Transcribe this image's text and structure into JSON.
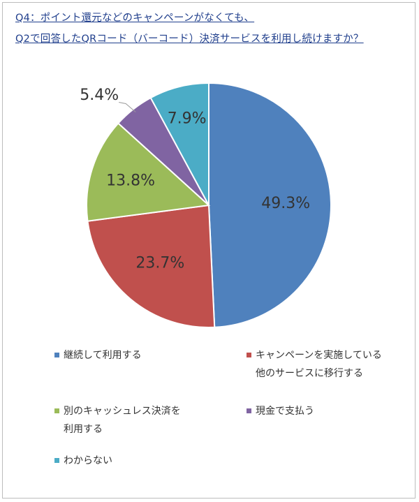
{
  "title": {
    "line1": "Q4：ポイント還元などのキャンペーンがなくても、",
    "line2": "Q2で回答したQRコード（バーコード）決済サービスを利用し続けますか？"
  },
  "chart_data": {
    "type": "pie",
    "start_angle_deg": 0,
    "direction": "clockwise",
    "slices": [
      {
        "label": "継続して利用する",
        "legend": "継続して利用する",
        "value": 49.3,
        "display": "49.3%",
        "color": "#4f81bd"
      },
      {
        "label": "キャンペーンを実施している他のサービスに移行する",
        "legend": "キャンペーンを実施している\n他のサービスに移行する",
        "value": 23.7,
        "display": "23.7%",
        "color": "#c0504d"
      },
      {
        "label": "別のキャッシュレス決済を利用する",
        "legend": "別のキャッシュレス決済を\n利用する",
        "value": 13.8,
        "display": "13.8%",
        "color": "#9bbb59"
      },
      {
        "label": "現金で支払う",
        "legend": "現金で支払う",
        "value": 5.4,
        "display": "5.4%",
        "color": "#8064a2"
      },
      {
        "label": "わからない",
        "legend": "わからない",
        "value": 7.9,
        "display": "7.9%",
        "color": "#4bacc6"
      }
    ]
  }
}
